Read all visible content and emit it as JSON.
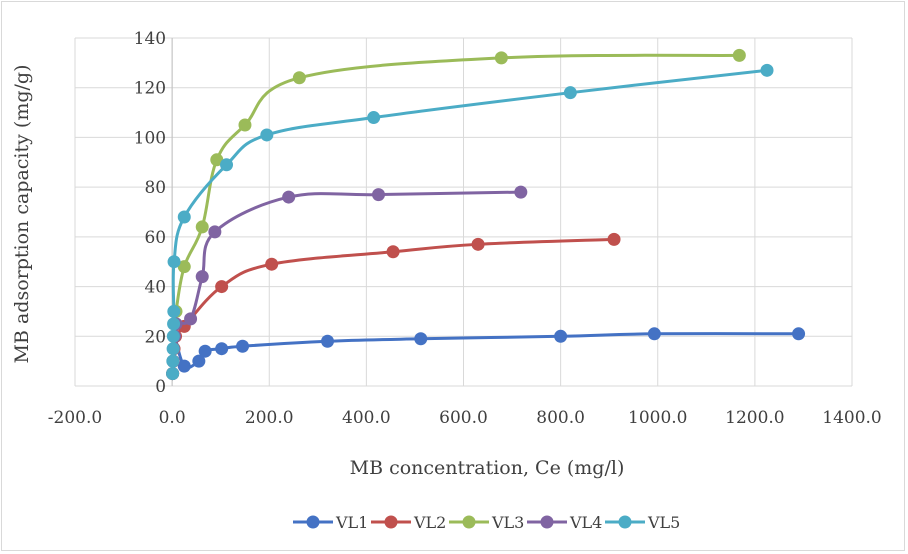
{
  "chart_data": {
    "type": "scatter",
    "title": "",
    "xlabel": "MB concentration, Ce (mg/l)",
    "ylabel": "MB adsorption capacity   (mg/g)",
    "xlim": [
      -200,
      1400
    ],
    "ylim": [
      0,
      140
    ],
    "x_ticks": [
      -200,
      0,
      200,
      400,
      600,
      800,
      1000,
      1200,
      1400
    ],
    "x_tick_labels": [
      "-200.0",
      "0.0",
      "200.0",
      "400.0",
      "600.0",
      "800.0",
      "1000.0",
      "1200.0",
      "1400.0"
    ],
    "y_ticks": [
      0,
      20,
      40,
      60,
      80,
      100,
      120,
      140
    ],
    "y_tick_labels": [
      "0",
      "20",
      "40",
      "60",
      "80",
      "100",
      "120",
      "140"
    ],
    "grid": true,
    "smooth_lines": true,
    "legend_position": "bottom",
    "series": [
      {
        "name": "VL1",
        "color": "#4472c4",
        "points": [
          [
            1,
            5
          ],
          [
            2,
            10
          ],
          [
            3,
            15
          ],
          [
            5,
            20
          ],
          [
            25,
            8
          ],
          [
            55,
            10
          ],
          [
            68,
            14
          ],
          [
            102,
            15
          ],
          [
            145,
            16
          ],
          [
            320,
            18
          ],
          [
            512,
            19
          ],
          [
            800,
            20
          ],
          [
            993,
            21
          ],
          [
            1290,
            21
          ]
        ]
      },
      {
        "name": "VL2",
        "color": "#c0504d",
        "points": [
          [
            1,
            5
          ],
          [
            2,
            10
          ],
          [
            4,
            15
          ],
          [
            7,
            20
          ],
          [
            25,
            24
          ],
          [
            102,
            40
          ],
          [
            205,
            49
          ],
          [
            455,
            54
          ],
          [
            630,
            57
          ],
          [
            910,
            59
          ]
        ]
      },
      {
        "name": "VL3",
        "color": "#9bbb59",
        "points": [
          [
            1,
            5
          ],
          [
            2,
            10
          ],
          [
            3,
            15
          ],
          [
            4,
            20
          ],
          [
            5,
            25
          ],
          [
            8,
            30
          ],
          [
            25,
            48
          ],
          [
            62,
            64
          ],
          [
            92,
            91
          ],
          [
            150,
            105
          ],
          [
            262,
            124
          ],
          [
            678,
            132
          ],
          [
            1168,
            133
          ]
        ]
      },
      {
        "name": "VL4",
        "color": "#8064a2",
        "points": [
          [
            1,
            5
          ],
          [
            2,
            10
          ],
          [
            3,
            15
          ],
          [
            5,
            20
          ],
          [
            8,
            25
          ],
          [
            38,
            27
          ],
          [
            62,
            44
          ],
          [
            88,
            62
          ],
          [
            240,
            76
          ],
          [
            425,
            77
          ],
          [
            718,
            78
          ]
        ]
      },
      {
        "name": "VL5",
        "color": "#4bacc6",
        "points": [
          [
            1,
            5
          ],
          [
            1.5,
            10
          ],
          [
            2,
            15
          ],
          [
            2.5,
            20
          ],
          [
            3,
            25
          ],
          [
            3.5,
            30
          ],
          [
            4,
            50
          ],
          [
            25,
            68
          ],
          [
            112,
            89
          ],
          [
            195,
            101
          ],
          [
            415,
            108
          ],
          [
            820,
            118
          ],
          [
            1225,
            127
          ]
        ]
      }
    ]
  }
}
